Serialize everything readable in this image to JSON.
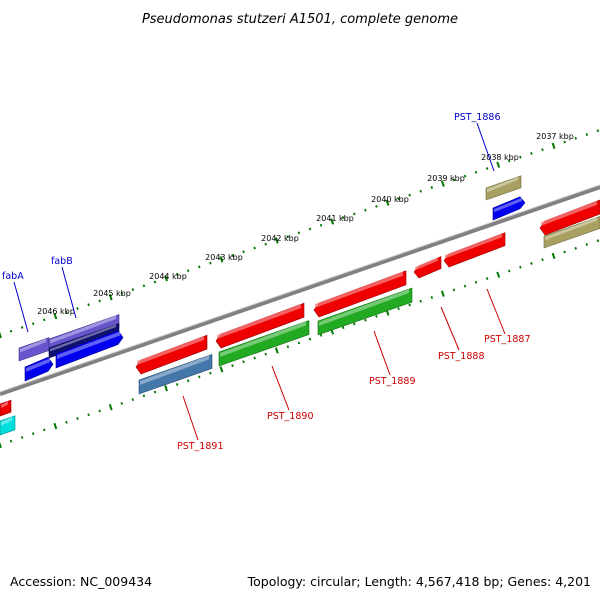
{
  "title": "Pseudomonas stutzeri A1501, complete genome",
  "footer": {
    "accession": "Accession: NC_009434",
    "summary": "Topology: circular; Length: 4,567,418 bp; Genes: 4,201"
  },
  "ticks": [
    {
      "label": "2037 kbp"
    },
    {
      "label": "2038 kbp"
    },
    {
      "label": "2039 kbp"
    },
    {
      "label": "2040 kbp"
    },
    {
      "label": "2041 kbp"
    },
    {
      "label": "2042 kbp"
    },
    {
      "label": "2043 kbp"
    },
    {
      "label": "2044 kbp"
    },
    {
      "label": "2045 kbp"
    },
    {
      "label": "2046 kbp"
    }
  ],
  "gene_labels": [
    {
      "id": "fabA",
      "text": "fabA",
      "color": "#0000cc"
    },
    {
      "id": "fabB",
      "text": "fabB",
      "color": "#0000cc"
    },
    {
      "id": "PST_1886",
      "text": "PST_1886",
      "color": "#0000cc"
    },
    {
      "id": "PST_1887",
      "text": "PST_1887",
      "color": "#cc0000"
    },
    {
      "id": "PST_1888",
      "text": "PST_1888",
      "color": "#cc0000"
    },
    {
      "id": "PST_1889",
      "text": "PST_1889",
      "color": "#cc0000"
    },
    {
      "id": "PST_1890",
      "text": "PST_1890",
      "color": "#cc0000"
    },
    {
      "id": "PST_1891",
      "text": "PST_1891",
      "color": "#cc0000"
    }
  ],
  "colors": {
    "backbone": "#808080",
    "tick": "#007700",
    "red": "#ee0000",
    "green": "#22aa22",
    "blue": "#0000ee",
    "purple": "#6655cc",
    "navy": "#101070",
    "steel": "#4477aa",
    "olive": "#a8a060",
    "cyan": "#00dddd"
  }
}
